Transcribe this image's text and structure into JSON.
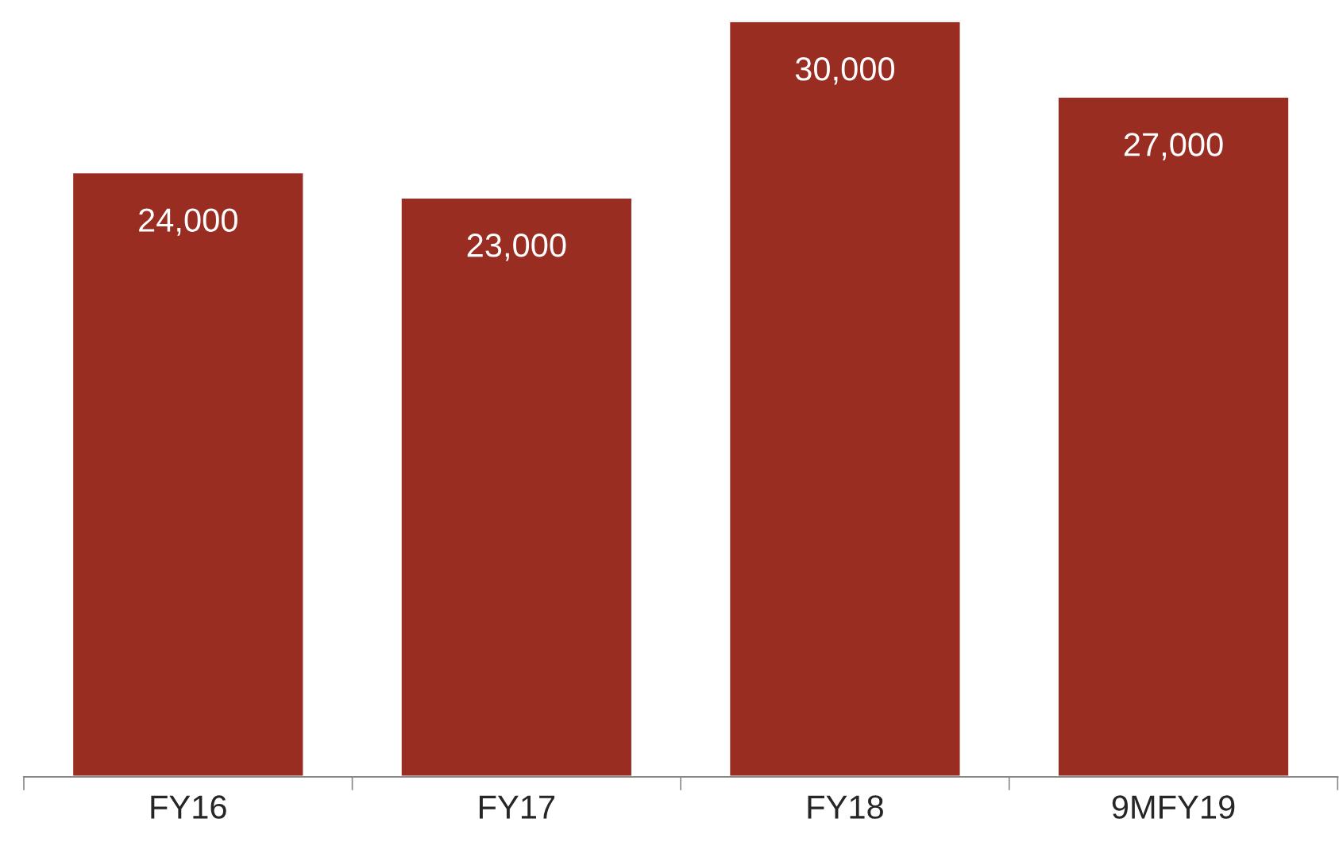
{
  "chart_data": {
    "type": "bar",
    "categories": [
      "FY16",
      "FY17",
      "FY18",
      "9MFY19"
    ],
    "values": [
      24000,
      23000,
      30000,
      27000
    ],
    "value_labels": [
      "24,000",
      "23,000",
      "30,000",
      "27,000"
    ],
    "color": "#992d22",
    "tick_labels": "x"
  }
}
